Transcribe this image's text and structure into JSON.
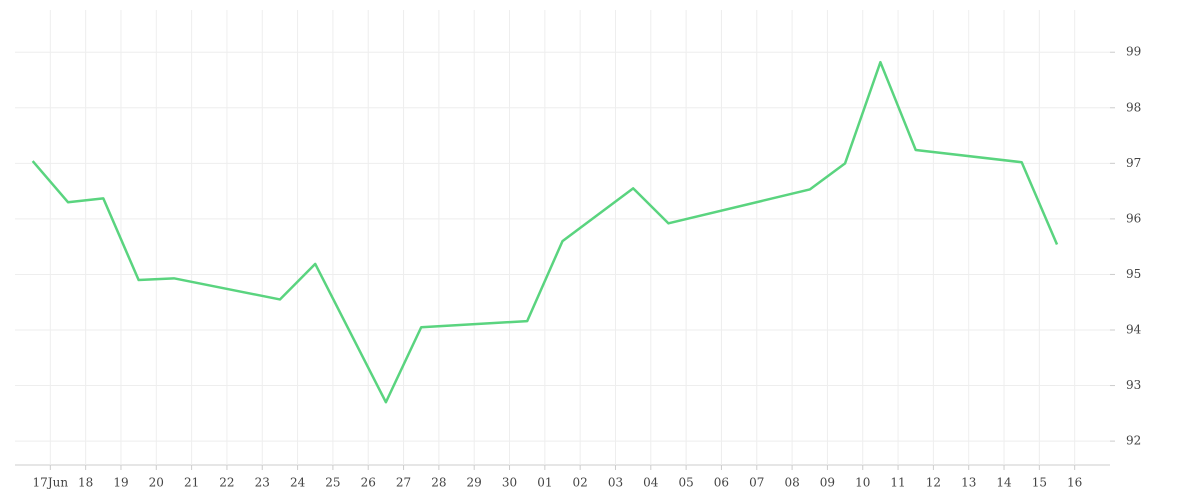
{
  "chart_data": {
    "type": "line",
    "x": [
      -0.5,
      0.5,
      1.5,
      2.5,
      3.5,
      6.5,
      7.5,
      9.5,
      10.5,
      13.5,
      14.5,
      16.5,
      17.5,
      21.5,
      22.5,
      23.5,
      24.5,
      27.5,
      28.5
    ],
    "series": [
      {
        "color": "#5ad47f",
        "values": [
          97.04,
          96.3,
          96.37,
          94.9,
          94.93,
          94.55,
          95.19,
          92.7,
          94.05,
          94.16,
          95.6,
          96.55,
          95.92,
          96.53,
          97.0,
          98.82,
          97.24,
          97.02,
          95.54
        ]
      }
    ],
    "xlim": [
      -1,
      30
    ],
    "xticks": [
      {
        "value": 0,
        "label": "17Jun"
      },
      {
        "value": 1,
        "label": "18"
      },
      {
        "value": 2,
        "label": "19"
      },
      {
        "value": 3,
        "label": "20"
      },
      {
        "value": 4,
        "label": "21"
      },
      {
        "value": 5,
        "label": "22"
      },
      {
        "value": 6,
        "label": "23"
      },
      {
        "value": 7,
        "label": "24"
      },
      {
        "value": 8,
        "label": "25"
      },
      {
        "value": 9,
        "label": "26"
      },
      {
        "value": 10,
        "label": "27"
      },
      {
        "value": 11,
        "label": "28"
      },
      {
        "value": 12,
        "label": "29"
      },
      {
        "value": 13,
        "label": "30"
      },
      {
        "value": 14,
        "label": "01"
      },
      {
        "value": 15,
        "label": "02"
      },
      {
        "value": 16,
        "label": "03"
      },
      {
        "value": 17,
        "label": "04"
      },
      {
        "value": 18,
        "label": "05"
      },
      {
        "value": 19,
        "label": "06"
      },
      {
        "value": 20,
        "label": "07"
      },
      {
        "value": 21,
        "label": "08"
      },
      {
        "value": 22,
        "label": "09"
      },
      {
        "value": 23,
        "label": "10"
      },
      {
        "value": 24,
        "label": "11"
      },
      {
        "value": 25,
        "label": "12"
      },
      {
        "value": 26,
        "label": "13"
      },
      {
        "value": 27,
        "label": "14"
      },
      {
        "value": 28,
        "label": "15"
      },
      {
        "value": 29,
        "label": "16"
      }
    ],
    "ylim": [
      91.57,
      99.76
    ],
    "yticks": [
      92,
      93,
      94,
      95,
      96,
      97,
      98,
      99
    ],
    "grid": true,
    "y_axis_side": "right"
  }
}
